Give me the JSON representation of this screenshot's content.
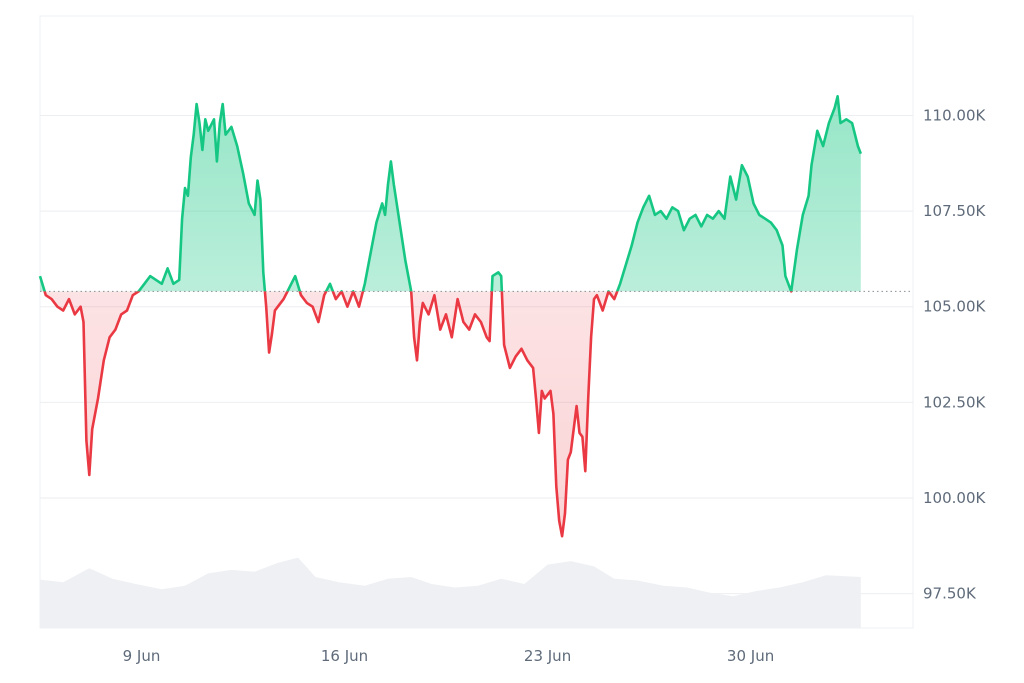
{
  "chart_data": {
    "type": "line",
    "title": "",
    "xlabel": "",
    "ylabel": "",
    "x_ticks": [
      {
        "label": "9 Jun",
        "day": 9
      },
      {
        "label": "16 Jun",
        "day": 16
      },
      {
        "label": "23 Jun",
        "day": 23
      },
      {
        "label": "30 Jun",
        "day": 30
      }
    ],
    "y_ticks": [
      {
        "label": "110.00K",
        "value": 110000
      },
      {
        "label": "107.50K",
        "value": 107500
      },
      {
        "label": "105.00K",
        "value": 105000
      },
      {
        "label": "102.50K",
        "value": 102500
      },
      {
        "label": "100.00K",
        "value": 100000
      },
      {
        "label": "97.50K",
        "value": 97500
      }
    ],
    "xlim": [
      5.5,
      35.6
    ],
    "ylim": [
      96600,
      112600
    ],
    "baseline": 105400,
    "grid": true,
    "colors": {
      "above": "#16c784",
      "below": "#ea3943",
      "volume": "#eef0f3",
      "grid": "#eceef1"
    },
    "series": [
      {
        "values": [
          [
            5.5,
            105.8
          ],
          [
            5.7,
            105.3
          ],
          [
            5.9,
            105.2
          ],
          [
            6.1,
            105.0
          ],
          [
            6.3,
            104.9
          ],
          [
            6.5,
            105.2
          ],
          [
            6.7,
            104.8
          ],
          [
            6.9,
            105.0
          ],
          [
            7.0,
            104.6
          ],
          [
            7.1,
            101.5
          ],
          [
            7.2,
            100.6
          ],
          [
            7.3,
            101.8
          ],
          [
            7.5,
            102.6
          ],
          [
            7.7,
            103.6
          ],
          [
            7.9,
            104.2
          ],
          [
            8.1,
            104.4
          ],
          [
            8.3,
            104.8
          ],
          [
            8.5,
            104.9
          ],
          [
            8.7,
            105.3
          ],
          [
            8.9,
            105.4
          ],
          [
            9.1,
            105.6
          ],
          [
            9.3,
            105.8
          ],
          [
            9.5,
            105.7
          ],
          [
            9.7,
            105.6
          ],
          [
            9.9,
            106.0
          ],
          [
            10.0,
            105.8
          ],
          [
            10.1,
            105.6
          ],
          [
            10.3,
            105.7
          ],
          [
            10.4,
            107.3
          ],
          [
            10.5,
            108.1
          ],
          [
            10.6,
            107.9
          ],
          [
            10.7,
            108.9
          ],
          [
            10.8,
            109.5
          ],
          [
            10.9,
            110.3
          ],
          [
            11.0,
            109.8
          ],
          [
            11.1,
            109.1
          ],
          [
            11.2,
            109.9
          ],
          [
            11.3,
            109.6
          ],
          [
            11.5,
            109.9
          ],
          [
            11.6,
            108.8
          ],
          [
            11.7,
            109.8
          ],
          [
            11.8,
            110.3
          ],
          [
            11.9,
            109.5
          ],
          [
            12.1,
            109.7
          ],
          [
            12.3,
            109.2
          ],
          [
            12.5,
            108.5
          ],
          [
            12.7,
            107.7
          ],
          [
            12.9,
            107.4
          ],
          [
            13.0,
            108.3
          ],
          [
            13.1,
            107.8
          ],
          [
            13.2,
            105.9
          ],
          [
            13.3,
            105.0
          ],
          [
            13.4,
            103.8
          ],
          [
            13.5,
            104.3
          ],
          [
            13.6,
            104.9
          ],
          [
            13.7,
            105.0
          ],
          [
            13.9,
            105.2
          ],
          [
            14.1,
            105.5
          ],
          [
            14.3,
            105.8
          ],
          [
            14.5,
            105.3
          ],
          [
            14.7,
            105.1
          ],
          [
            14.9,
            105.0
          ],
          [
            15.1,
            104.6
          ],
          [
            15.3,
            105.3
          ],
          [
            15.5,
            105.6
          ],
          [
            15.7,
            105.2
          ],
          [
            15.9,
            105.4
          ],
          [
            16.1,
            105.0
          ],
          [
            16.3,
            105.4
          ],
          [
            16.5,
            105.0
          ],
          [
            16.7,
            105.6
          ],
          [
            16.9,
            106.4
          ],
          [
            17.1,
            107.2
          ],
          [
            17.3,
            107.7
          ],
          [
            17.4,
            107.4
          ],
          [
            17.5,
            108.2
          ],
          [
            17.6,
            108.8
          ],
          [
            17.7,
            108.2
          ],
          [
            17.9,
            107.2
          ],
          [
            18.1,
            106.2
          ],
          [
            18.3,
            105.4
          ],
          [
            18.4,
            104.2
          ],
          [
            18.5,
            103.6
          ],
          [
            18.6,
            104.6
          ],
          [
            18.7,
            105.1
          ],
          [
            18.9,
            104.8
          ],
          [
            19.1,
            105.3
          ],
          [
            19.3,
            104.4
          ],
          [
            19.5,
            104.8
          ],
          [
            19.7,
            104.2
          ],
          [
            19.9,
            105.2
          ],
          [
            20.1,
            104.6
          ],
          [
            20.3,
            104.4
          ],
          [
            20.5,
            104.8
          ],
          [
            20.7,
            104.6
          ],
          [
            20.9,
            104.2
          ],
          [
            21.0,
            104.1
          ],
          [
            21.1,
            105.8
          ],
          [
            21.3,
            105.9
          ],
          [
            21.4,
            105.8
          ],
          [
            21.5,
            104.0
          ],
          [
            21.7,
            103.4
          ],
          [
            21.9,
            103.7
          ],
          [
            22.1,
            103.9
          ],
          [
            22.3,
            103.6
          ],
          [
            22.5,
            103.4
          ],
          [
            22.6,
            102.6
          ],
          [
            22.7,
            101.7
          ],
          [
            22.8,
            102.8
          ],
          [
            22.9,
            102.6
          ],
          [
            23.1,
            102.8
          ],
          [
            23.2,
            102.2
          ],
          [
            23.3,
            100.3
          ],
          [
            23.4,
            99.4
          ],
          [
            23.5,
            99.0
          ],
          [
            23.6,
            99.6
          ],
          [
            23.7,
            101.0
          ],
          [
            23.8,
            101.2
          ],
          [
            23.9,
            101.8
          ],
          [
            24.0,
            102.4
          ],
          [
            24.1,
            101.7
          ],
          [
            24.2,
            101.6
          ],
          [
            24.3,
            100.7
          ],
          [
            24.4,
            102.6
          ],
          [
            24.5,
            104.2
          ],
          [
            24.6,
            105.2
          ],
          [
            24.7,
            105.3
          ],
          [
            24.9,
            104.9
          ],
          [
            25.1,
            105.4
          ],
          [
            25.3,
            105.2
          ],
          [
            25.5,
            105.6
          ],
          [
            25.7,
            106.1
          ],
          [
            25.9,
            106.6
          ],
          [
            26.1,
            107.2
          ],
          [
            26.3,
            107.6
          ],
          [
            26.5,
            107.9
          ],
          [
            26.7,
            107.4
          ],
          [
            26.9,
            107.5
          ],
          [
            27.1,
            107.3
          ],
          [
            27.3,
            107.6
          ],
          [
            27.5,
            107.5
          ],
          [
            27.7,
            107.0
          ],
          [
            27.9,
            107.3
          ],
          [
            28.1,
            107.4
          ],
          [
            28.3,
            107.1
          ],
          [
            28.5,
            107.4
          ],
          [
            28.7,
            107.3
          ],
          [
            28.9,
            107.5
          ],
          [
            29.1,
            107.3
          ],
          [
            29.3,
            108.4
          ],
          [
            29.5,
            107.8
          ],
          [
            29.7,
            108.7
          ],
          [
            29.9,
            108.4
          ],
          [
            30.1,
            107.7
          ],
          [
            30.3,
            107.4
          ],
          [
            30.5,
            107.3
          ],
          [
            30.7,
            107.2
          ],
          [
            30.9,
            107.0
          ],
          [
            31.1,
            106.6
          ],
          [
            31.2,
            105.8
          ],
          [
            31.4,
            105.4
          ],
          [
            31.6,
            106.5
          ],
          [
            31.8,
            107.4
          ],
          [
            32.0,
            107.9
          ],
          [
            32.1,
            108.7
          ],
          [
            32.3,
            109.6
          ],
          [
            32.5,
            109.2
          ],
          [
            32.7,
            109.8
          ],
          [
            32.9,
            110.2
          ],
          [
            33.0,
            110.5
          ],
          [
            33.1,
            109.8
          ],
          [
            33.3,
            109.9
          ],
          [
            33.5,
            109.8
          ],
          [
            33.7,
            109.2
          ],
          [
            33.8,
            109.0
          ]
        ]
      },
      {
        "name": "",
        "values": [
          [
            5.5,
            0.55
          ],
          [
            6.3,
            0.52
          ],
          [
            7.2,
            0.68
          ],
          [
            8.0,
            0.56
          ],
          [
            8.8,
            0.5
          ],
          [
            9.7,
            0.44
          ],
          [
            10.5,
            0.48
          ],
          [
            11.3,
            0.62
          ],
          [
            12.1,
            0.66
          ],
          [
            12.9,
            0.64
          ],
          [
            13.7,
            0.74
          ],
          [
            14.4,
            0.8
          ],
          [
            15.0,
            0.58
          ],
          [
            15.8,
            0.52
          ],
          [
            16.7,
            0.48
          ],
          [
            17.5,
            0.56
          ],
          [
            18.3,
            0.58
          ],
          [
            19.0,
            0.5
          ],
          [
            19.8,
            0.46
          ],
          [
            20.6,
            0.48
          ],
          [
            21.4,
            0.56
          ],
          [
            22.2,
            0.5
          ],
          [
            23.0,
            0.72
          ],
          [
            23.8,
            0.76
          ],
          [
            24.6,
            0.7
          ],
          [
            25.3,
            0.56
          ],
          [
            26.1,
            0.54
          ],
          [
            27.0,
            0.48
          ],
          [
            27.8,
            0.46
          ],
          [
            28.6,
            0.4
          ],
          [
            29.4,
            0.36
          ],
          [
            30.2,
            0.42
          ],
          [
            31.0,
            0.46
          ],
          [
            31.8,
            0.52
          ],
          [
            32.6,
            0.6
          ],
          [
            33.8,
            0.58
          ]
        ]
      }
    ]
  }
}
